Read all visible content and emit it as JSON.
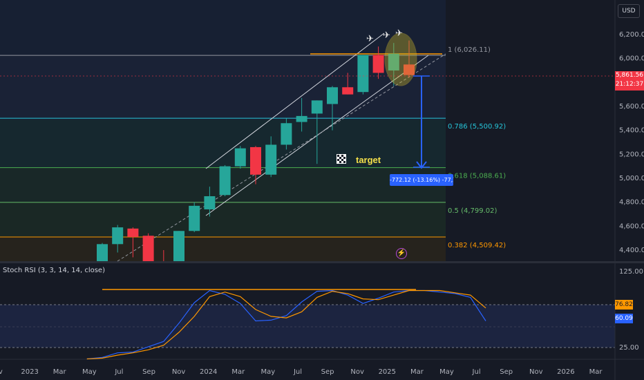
{
  "header": {
    "currency": "USD"
  },
  "price_tag": {
    "value": "5,861.56",
    "countdown": "21:12:37",
    "color": "#f23645"
  },
  "measure": {
    "label": "-772.12 (-13.16%) -77,212"
  },
  "annotations": {
    "target": "target",
    "flag_icon": "checkered-flag-icon",
    "lightning_icon": "lightning-icon"
  },
  "colors": {
    "up": "#26a69a",
    "down": "#f23645",
    "channel": "#d1d4dc",
    "orange": "#ff9800",
    "blue": "#2962ff"
  },
  "fib_levels": [
    {
      "ratio": "1",
      "value": 6026.11,
      "label": "1 (6,026.11)",
      "color": "#9598a1"
    },
    {
      "ratio": "0.786",
      "value": 5500.92,
      "label": "0.786 (5,500.92)",
      "color": "#26c6da"
    },
    {
      "ratio": "0.618",
      "value": 5088.61,
      "label": "0.618 (5,088.61)",
      "color": "#4caf50"
    },
    {
      "ratio": "0.5",
      "value": 4799.02,
      "label": "0.5 (4,799.02)",
      "color": "#66bb6a"
    },
    {
      "ratio": "0.382",
      "value": 4509.42,
      "label": "0.382 (4,509.42)",
      "color": "#ff9800"
    }
  ],
  "chart_data": [
    {
      "type": "candlestick",
      "title": "",
      "y_ticks": [
        "6,200.00",
        "6,000.00",
        "5,800.00",
        "5,600.00",
        "5,400.00",
        "5,200.00",
        "5,000.00",
        "4,800.00",
        "4,600.00",
        "4,400.00"
      ],
      "x_ticks": [
        "Nov",
        "2023",
        "Mar",
        "May",
        "Jul",
        "Sep",
        "Nov",
        "2024",
        "Mar",
        "May",
        "Jul",
        "Sep",
        "Nov",
        "2025",
        "Mar",
        "May",
        "Jul",
        "Sep",
        "Nov",
        "2026",
        "Mar"
      ],
      "ylim": [
        4320,
        6330
      ],
      "candles": [
        {
          "period": "2023-06",
          "open": 4180,
          "high": 4460,
          "low": 4180,
          "close": 4450
        },
        {
          "period": "2023-07",
          "open": 4450,
          "high": 4610,
          "low": 4380,
          "close": 4590
        },
        {
          "period": "2023-08",
          "open": 4580,
          "high": 4590,
          "low": 4340,
          "close": 4510
        },
        {
          "period": "2023-09",
          "open": 4520,
          "high": 4540,
          "low": 4240,
          "close": 4290
        },
        {
          "period": "2023-10",
          "open": 4290,
          "high": 4400,
          "low": 4110,
          "close": 4190
        },
        {
          "period": "2023-11",
          "open": 4200,
          "high": 4560,
          "low": 4150,
          "close": 4560
        },
        {
          "period": "2023-12",
          "open": 4560,
          "high": 4800,
          "low": 4550,
          "close": 4770
        },
        {
          "period": "2024-01",
          "open": 4740,
          "high": 4930,
          "low": 4680,
          "close": 4850
        },
        {
          "period": "2024-02",
          "open": 4860,
          "high": 5110,
          "low": 4850,
          "close": 5100
        },
        {
          "period": "2024-03",
          "open": 5100,
          "high": 5270,
          "low": 5080,
          "close": 5250
        },
        {
          "period": "2024-04",
          "open": 5260,
          "high": 5270,
          "low": 4950,
          "close": 5030
        },
        {
          "period": "2024-05",
          "open": 5030,
          "high": 5350,
          "low": 5010,
          "close": 5280
        },
        {
          "period": "2024-06",
          "open": 5280,
          "high": 5500,
          "low": 5240,
          "close": 5460
        },
        {
          "period": "2024-07",
          "open": 5470,
          "high": 5670,
          "low": 5390,
          "close": 5520
        },
        {
          "period": "2024-08",
          "open": 5540,
          "high": 5650,
          "low": 5120,
          "close": 5650
        },
        {
          "period": "2024-09",
          "open": 5620,
          "high": 5770,
          "low": 5400,
          "close": 5760
        },
        {
          "period": "2024-10",
          "open": 5760,
          "high": 5880,
          "low": 5700,
          "close": 5700
        },
        {
          "period": "2024-11",
          "open": 5720,
          "high": 6020,
          "low": 5700,
          "close": 6030
        },
        {
          "period": "2024-12",
          "open": 6030,
          "high": 6100,
          "low": 5830,
          "close": 5880
        },
        {
          "period": "2025-01",
          "open": 5900,
          "high": 6130,
          "low": 5770,
          "close": 6040
        },
        {
          "period": "2025-02",
          "open": 5950,
          "high": 6150,
          "low": 5840,
          "close": 5862
        }
      ]
    },
    {
      "type": "line",
      "title": "Stoch RSI (3, 3, 14, 14, close)",
      "y_ticks": [
        "125.00",
        "25.00"
      ],
      "ylim": [
        0,
        135
      ],
      "series": [
        {
          "name": "%K",
          "color": "#2962ff",
          "last_label": "60.09",
          "values": [
            [
              -1,
              10
            ],
            [
              0,
              12
            ],
            [
              1,
              18
            ],
            [
              2,
              19
            ],
            [
              3,
              26
            ],
            [
              4,
              33
            ],
            [
              5,
              57
            ],
            [
              6,
              84
            ],
            [
              7,
              100
            ],
            [
              8,
              95
            ],
            [
              9,
              83
            ],
            [
              10,
              60
            ],
            [
              11,
              61
            ],
            [
              12,
              67
            ],
            [
              13,
              85
            ],
            [
              14,
              99
            ],
            [
              15,
              100
            ],
            [
              16,
              94
            ],
            [
              17,
              83
            ],
            [
              18,
              90
            ],
            [
              19,
              98
            ],
            [
              20,
              100
            ],
            [
              21,
              100
            ],
            [
              22,
              98
            ],
            [
              23,
              96
            ],
            [
              24,
              91
            ],
            [
              25,
              60
            ]
          ]
        },
        {
          "name": "%D",
          "color": "#ff9800",
          "last_label": "76.82",
          "values": [
            [
              -1,
              10
            ],
            [
              0,
              11
            ],
            [
              1,
              15
            ],
            [
              2,
              18
            ],
            [
              3,
              22
            ],
            [
              4,
              28
            ],
            [
              5,
              45
            ],
            [
              6,
              66
            ],
            [
              7,
              92
            ],
            [
              8,
              98
            ],
            [
              9,
              92
            ],
            [
              10,
              75
            ],
            [
              11,
              66
            ],
            [
              12,
              64
            ],
            [
              13,
              72
            ],
            [
              14,
              91
            ],
            [
              15,
              99
            ],
            [
              16,
              96
            ],
            [
              17,
              89
            ],
            [
              18,
              88
            ],
            [
              19,
              94
            ],
            [
              20,
              100
            ],
            [
              21,
              100
            ],
            [
              22,
              100
            ],
            [
              23,
              97
            ],
            [
              24,
              94
            ],
            [
              25,
              77
            ]
          ]
        }
      ]
    }
  ]
}
